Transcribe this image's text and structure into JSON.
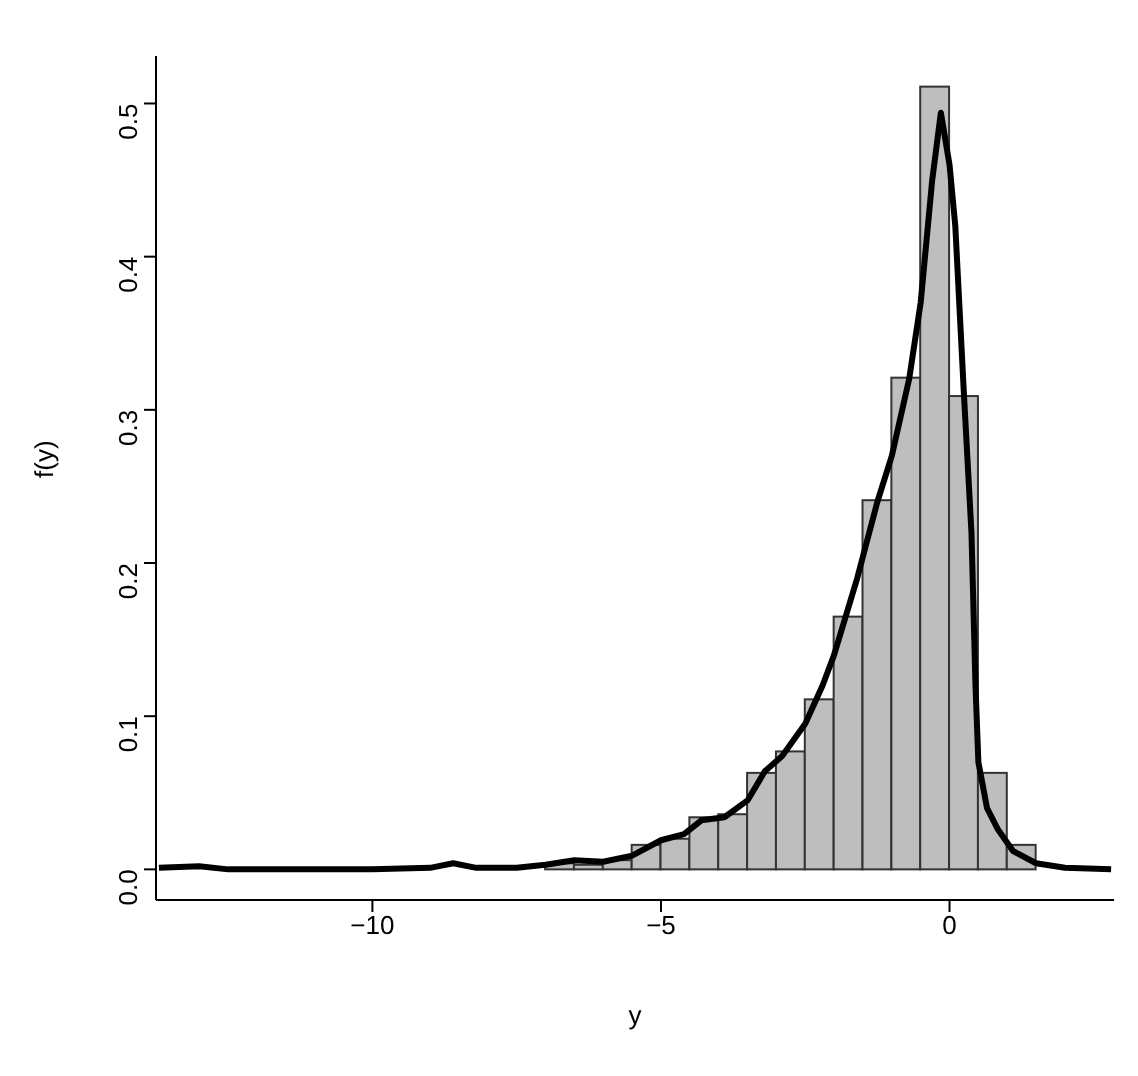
{
  "chart_data": {
    "type": "histogram",
    "xlabel": "y",
    "ylabel": "f(y)",
    "color": "#bebebe",
    "bins": [
      -7,
      -6.5,
      -6,
      -5.5,
      -5,
      -4.5,
      -4,
      -3.5,
      -3,
      -2.5,
      -2,
      -1.5,
      -1,
      -0.5,
      0,
      0.5,
      1,
      1.5
    ],
    "values": [
      0.004,
      0.003,
      0.006,
      0.016,
      0.02,
      0.034,
      0.036,
      0.063,
      0.077,
      0.111,
      0.165,
      0.241,
      0.321,
      0.511,
      0.309,
      0.063,
      0.016
    ],
    "series": [
      {
        "type": "line",
        "color": "#000000",
        "x": [
          -13.7,
          -13,
          -12.5,
          -11,
          -10,
          -9,
          -8.6,
          -8.2,
          -7.5,
          -7,
          -6.5,
          -6,
          -5.5,
          -5,
          -4.6,
          -4.3,
          -3.9,
          -3.5,
          -3.2,
          -2.9,
          -2.5,
          -2.2,
          -2,
          -1.6,
          -1.25,
          -1,
          -0.7,
          -0.5,
          -0.3,
          -0.15,
          0,
          0.1,
          0.25,
          0.38,
          0.45,
          0.5,
          0.65,
          0.84,
          1.1,
          1.5,
          2,
          2.8
        ],
        "values": [
          0.001,
          0.002,
          0,
          0,
          0,
          0.001,
          0.004,
          0.001,
          0.001,
          0.003,
          0.006,
          0.005,
          0.009,
          0.019,
          0.023,
          0.032,
          0.034,
          0.045,
          0.064,
          0.074,
          0.095,
          0.12,
          0.14,
          0.19,
          0.24,
          0.27,
          0.32,
          0.37,
          0.45,
          0.494,
          0.46,
          0.42,
          0.31,
          0.22,
          0.12,
          0.07,
          0.04,
          0.026,
          0.012,
          0.004,
          0.001,
          0
        ]
      }
    ],
    "xlim": [
      -13.75,
      2.85
    ],
    "ylim": [
      -0.02,
      0.531
    ],
    "xticks": [
      {
        "value": -10,
        "label": "−10"
      },
      {
        "value": -5,
        "label": "−5"
      },
      {
        "value": 0,
        "label": "0"
      }
    ],
    "yticks": [
      {
        "value": 0,
        "label": "0.0"
      },
      {
        "value": 0.1,
        "label": "0.1"
      },
      {
        "value": 0.2,
        "label": "0.2"
      },
      {
        "value": 0.3,
        "label": "0.3"
      },
      {
        "value": 0.4,
        "label": "0.4"
      },
      {
        "value": 0.5,
        "label": "0.5"
      }
    ]
  }
}
